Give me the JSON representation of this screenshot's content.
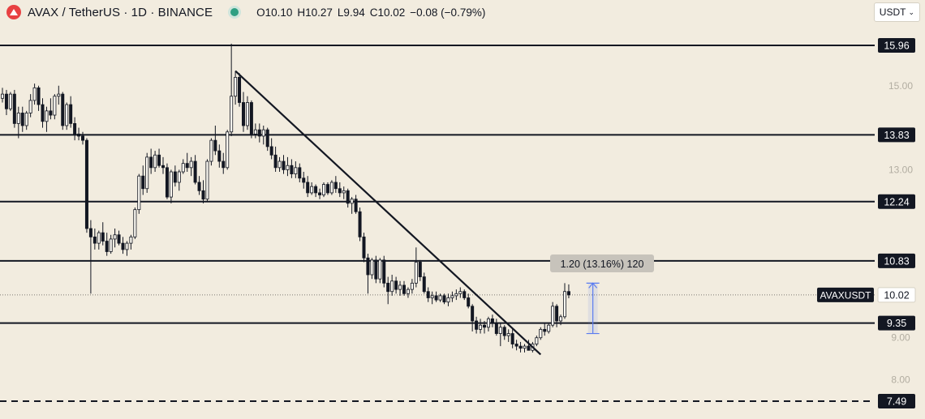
{
  "header": {
    "symbol_title": "AVAX / TetherUS · 1D · BINANCE",
    "ohlc": {
      "o": "O10.10",
      "h": "H10.27",
      "l": "L9.94",
      "c": "C10.02",
      "chg": "−0.08 (−0.79%)"
    }
  },
  "currency_selector": {
    "label": "USDT"
  },
  "colors": {
    "background": "#f2ecdf",
    "candle": "#131722",
    "measure": "#5b7cf0",
    "status_dot": "#2f9f82",
    "logo": "#e84142"
  },
  "icons": {
    "logo": "avalanche-logo-icon",
    "status": "market-status-dot-icon",
    "dropdown": "chevron-down-icon"
  },
  "chart_data": {
    "type": "candlestick",
    "symbol": "AVAXUSDT",
    "timeframe": "1D",
    "exchange": "BINANCE",
    "ylim": [
      7.3,
      16.2
    ],
    "y_ticks": [
      {
        "value": 15.0,
        "label": "15.00"
      },
      {
        "value": 13.0,
        "label": "13.00"
      },
      {
        "value": 9.0,
        "label": "9.00"
      },
      {
        "value": 8.0,
        "label": "8.00"
      }
    ],
    "horizontal_levels": [
      {
        "value": 15.96,
        "label": "15.96",
        "style": "solid"
      },
      {
        "value": 13.83,
        "label": "13.83",
        "style": "solid"
      },
      {
        "value": 12.24,
        "label": "12.24",
        "style": "solid"
      },
      {
        "value": 10.83,
        "label": "10.83",
        "style": "solid"
      },
      {
        "value": 9.35,
        "label": "9.35",
        "style": "solid"
      },
      {
        "value": 7.49,
        "label": "7.49",
        "style": "dashed"
      }
    ],
    "last_price": {
      "label": "AVAXUSDT",
      "value": 10.02,
      "text": "10.02"
    },
    "trendline": {
      "from": {
        "bar": 58,
        "price": 15.35
      },
      "to": {
        "bar": 134,
        "price": 8.6
      }
    },
    "measure": {
      "label": "1.20 (13.16%) 120",
      "from_price": 9.1,
      "to_price": 10.3,
      "bar": 147
    },
    "candles": [
      [
        14.7,
        14.95,
        14.6,
        14.8
      ],
      [
        14.8,
        14.9,
        14.3,
        14.45
      ],
      [
        14.45,
        14.85,
        14.4,
        14.8
      ],
      [
        14.8,
        14.9,
        14.0,
        14.1
      ],
      [
        14.1,
        14.5,
        13.75,
        14.35
      ],
      [
        14.35,
        14.5,
        13.9,
        14.05
      ],
      [
        14.05,
        14.4,
        13.95,
        14.35
      ],
      [
        14.35,
        14.8,
        14.25,
        14.65
      ],
      [
        14.65,
        15.05,
        14.55,
        14.95
      ],
      [
        14.95,
        15.0,
        14.4,
        14.55
      ],
      [
        14.55,
        14.7,
        14.0,
        14.15
      ],
      [
        14.15,
        14.5,
        13.9,
        14.4
      ],
      [
        14.4,
        14.7,
        14.2,
        14.3
      ],
      [
        14.3,
        14.8,
        14.2,
        14.75
      ],
      [
        14.75,
        15.0,
        14.55,
        14.8
      ],
      [
        14.8,
        14.85,
        13.95,
        14.05
      ],
      [
        14.05,
        14.6,
        13.95,
        14.55
      ],
      [
        14.55,
        14.75,
        14.0,
        14.1
      ],
      [
        14.1,
        14.25,
        13.7,
        13.85
      ],
      [
        13.85,
        14.0,
        13.7,
        13.8
      ],
      [
        13.8,
        13.9,
        13.6,
        13.7
      ],
      [
        13.7,
        13.75,
        11.5,
        11.6
      ],
      [
        11.6,
        11.8,
        10.05,
        11.4
      ],
      [
        11.4,
        11.6,
        11.1,
        11.25
      ],
      [
        11.25,
        11.55,
        11.1,
        11.5
      ],
      [
        11.5,
        11.75,
        11.2,
        11.3
      ],
      [
        11.3,
        11.5,
        10.95,
        11.05
      ],
      [
        11.05,
        11.45,
        11.0,
        11.35
      ],
      [
        11.35,
        11.6,
        11.15,
        11.45
      ],
      [
        11.45,
        11.55,
        11.2,
        11.25
      ],
      [
        11.25,
        11.4,
        11.0,
        11.1
      ],
      [
        11.1,
        11.3,
        10.95,
        11.25
      ],
      [
        11.25,
        11.45,
        11.1,
        11.4
      ],
      [
        11.4,
        12.1,
        11.35,
        12.05
      ],
      [
        12.05,
        12.9,
        11.95,
        12.85
      ],
      [
        12.85,
        13.1,
        12.4,
        12.55
      ],
      [
        12.55,
        13.4,
        12.45,
        13.3
      ],
      [
        13.3,
        13.5,
        12.9,
        13.05
      ],
      [
        13.05,
        13.45,
        12.95,
        13.35
      ],
      [
        13.35,
        13.5,
        13.05,
        13.1
      ],
      [
        13.1,
        13.3,
        12.9,
        13.05
      ],
      [
        13.05,
        13.15,
        12.3,
        12.35
      ],
      [
        12.35,
        13.0,
        12.2,
        12.95
      ],
      [
        12.95,
        13.1,
        12.6,
        12.7
      ],
      [
        12.7,
        13.0,
        12.5,
        12.95
      ],
      [
        12.95,
        13.25,
        12.9,
        13.15
      ],
      [
        13.15,
        13.4,
        12.95,
        13.05
      ],
      [
        13.05,
        13.3,
        12.85,
        13.2
      ],
      [
        13.2,
        13.35,
        12.65,
        12.7
      ],
      [
        12.7,
        12.85,
        12.4,
        12.5
      ],
      [
        12.5,
        12.75,
        12.2,
        12.3
      ],
      [
        12.3,
        13.25,
        12.25,
        13.2
      ],
      [
        13.2,
        13.75,
        13.1,
        13.7
      ],
      [
        13.7,
        14.05,
        13.35,
        13.45
      ],
      [
        13.45,
        13.6,
        13.05,
        13.2
      ],
      [
        13.2,
        13.4,
        12.9,
        13.05
      ],
      [
        13.05,
        13.95,
        13.0,
        13.9
      ],
      [
        13.9,
        16.0,
        13.8,
        14.75
      ],
      [
        14.75,
        15.35,
        14.55,
        15.2
      ],
      [
        15.2,
        15.3,
        14.5,
        14.6
      ],
      [
        14.6,
        14.85,
        13.9,
        14.05
      ],
      [
        14.05,
        14.75,
        13.95,
        14.6
      ],
      [
        14.6,
        14.65,
        13.75,
        13.85
      ],
      [
        13.85,
        14.1,
        13.75,
        13.95
      ],
      [
        13.95,
        14.1,
        13.65,
        13.8
      ],
      [
        13.8,
        14.05,
        13.6,
        13.95
      ],
      [
        13.95,
        14.0,
        13.45,
        13.55
      ],
      [
        13.55,
        13.75,
        13.25,
        13.35
      ],
      [
        13.35,
        13.55,
        12.95,
        13.05
      ],
      [
        13.05,
        13.3,
        12.95,
        13.2
      ],
      [
        13.2,
        13.35,
        12.9,
        13.0
      ],
      [
        13.0,
        13.3,
        12.85,
        13.1
      ],
      [
        13.1,
        13.25,
        12.8,
        12.9
      ],
      [
        12.9,
        13.2,
        12.8,
        13.05
      ],
      [
        13.05,
        13.15,
        12.7,
        12.8
      ],
      [
        12.8,
        12.95,
        12.55,
        12.7
      ],
      [
        12.7,
        12.85,
        12.35,
        12.45
      ],
      [
        12.45,
        12.7,
        12.4,
        12.6
      ],
      [
        12.6,
        12.65,
        12.35,
        12.45
      ],
      [
        12.45,
        12.55,
        12.3,
        12.4
      ],
      [
        12.4,
        12.7,
        12.35,
        12.65
      ],
      [
        12.65,
        12.7,
        12.4,
        12.45
      ],
      [
        12.45,
        12.75,
        12.4,
        12.7
      ],
      [
        12.7,
        12.85,
        12.45,
        12.55
      ],
      [
        12.55,
        12.7,
        12.35,
        12.45
      ],
      [
        12.45,
        12.6,
        12.3,
        12.5
      ],
      [
        12.5,
        12.55,
        12.1,
        12.2
      ],
      [
        12.2,
        12.35,
        11.95,
        12.3
      ],
      [
        12.3,
        12.4,
        11.95,
        12.0
      ],
      [
        12.0,
        12.1,
        11.3,
        11.4
      ],
      [
        11.4,
        11.5,
        10.8,
        10.9
      ],
      [
        10.9,
        11.0,
        10.05,
        10.5
      ],
      [
        10.5,
        10.9,
        10.4,
        10.85
      ],
      [
        10.85,
        10.95,
        10.3,
        10.4
      ],
      [
        10.4,
        10.9,
        10.3,
        10.85
      ],
      [
        10.85,
        10.95,
        10.2,
        10.3
      ],
      [
        10.3,
        10.45,
        9.8,
        10.1
      ],
      [
        10.1,
        10.5,
        10.0,
        10.35
      ],
      [
        10.35,
        10.45,
        10.05,
        10.15
      ],
      [
        10.15,
        10.35,
        10.0,
        10.25
      ],
      [
        10.25,
        10.35,
        10.0,
        10.05
      ],
      [
        10.05,
        10.2,
        9.95,
        10.15
      ],
      [
        10.15,
        10.4,
        10.05,
        10.3
      ],
      [
        10.3,
        11.15,
        10.2,
        10.8
      ],
      [
        10.8,
        10.85,
        10.35,
        10.45
      ],
      [
        10.45,
        10.55,
        10.05,
        10.1
      ],
      [
        10.1,
        10.2,
        9.85,
        9.95
      ],
      [
        9.95,
        10.1,
        9.8,
        10.0
      ],
      [
        10.0,
        10.1,
        9.85,
        9.9
      ],
      [
        9.9,
        10.05,
        9.85,
        10.0
      ],
      [
        10.0,
        10.05,
        9.8,
        9.85
      ],
      [
        9.85,
        10.05,
        9.75,
        9.95
      ],
      [
        9.95,
        10.1,
        9.85,
        10.0
      ],
      [
        10.0,
        10.15,
        9.9,
        10.05
      ],
      [
        10.05,
        10.2,
        9.95,
        10.1
      ],
      [
        10.1,
        10.15,
        9.9,
        9.95
      ],
      [
        9.95,
        10.05,
        9.7,
        9.75
      ],
      [
        9.75,
        9.8,
        9.15,
        9.4
      ],
      [
        9.4,
        9.5,
        9.1,
        9.2
      ],
      [
        9.2,
        9.45,
        9.1,
        9.3
      ],
      [
        9.3,
        9.4,
        9.1,
        9.25
      ],
      [
        9.25,
        9.5,
        9.15,
        9.45
      ],
      [
        9.45,
        9.55,
        9.25,
        9.35
      ],
      [
        9.35,
        9.45,
        9.05,
        9.1
      ],
      [
        9.1,
        9.35,
        8.8,
        9.25
      ],
      [
        9.25,
        9.3,
        8.95,
        9.05
      ],
      [
        9.05,
        9.2,
        8.9,
        9.1
      ],
      [
        9.1,
        9.2,
        8.75,
        8.85
      ],
      [
        8.85,
        8.95,
        8.7,
        8.8
      ],
      [
        8.8,
        8.9,
        8.65,
        8.75
      ],
      [
        8.75,
        8.85,
        8.65,
        8.8
      ],
      [
        8.8,
        8.95,
        8.7,
        8.7
      ],
      [
        8.7,
        8.9,
        8.65,
        8.85
      ],
      [
        8.85,
        9.05,
        8.8,
        9.0
      ],
      [
        9.0,
        9.25,
        8.95,
        9.2
      ],
      [
        9.2,
        9.35,
        9.05,
        9.15
      ],
      [
        9.15,
        9.35,
        9.1,
        9.3
      ],
      [
        9.3,
        9.85,
        9.25,
        9.75
      ],
      [
        9.75,
        9.8,
        9.25,
        9.4
      ],
      [
        9.4,
        9.55,
        9.3,
        9.5
      ],
      [
        9.5,
        10.3,
        9.45,
        10.1
      ],
      [
        10.1,
        10.27,
        9.94,
        10.02
      ]
    ]
  }
}
